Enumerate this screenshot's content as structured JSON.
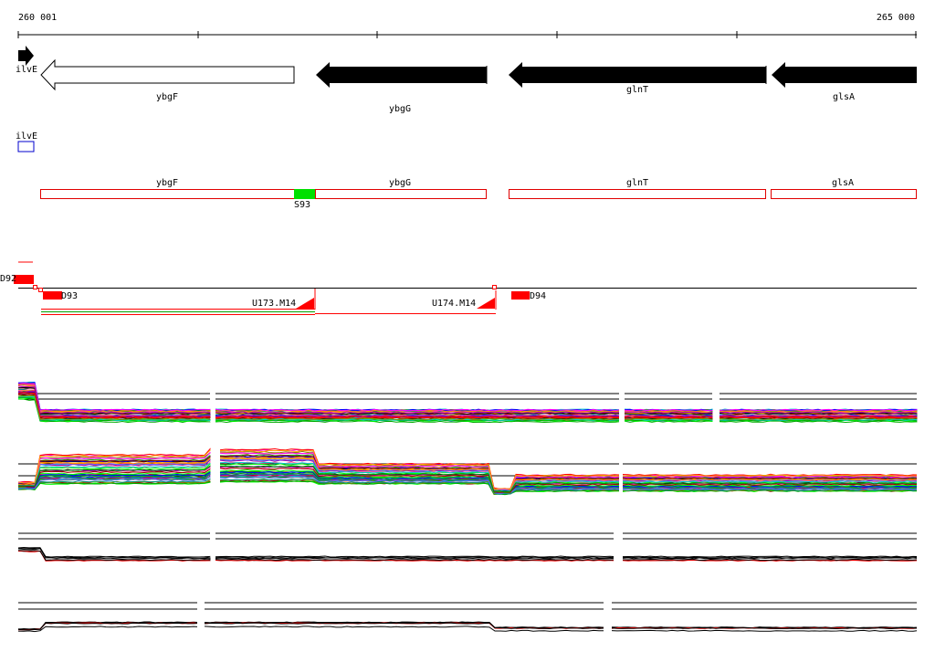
{
  "ruler": {
    "start_label": "260 001",
    "end_label": "265 000"
  },
  "genes": [
    {
      "name": "ilvE",
      "strand": "+",
      "filled": true
    },
    {
      "name": "ybgF",
      "strand": "-",
      "filled": false
    },
    {
      "name": "ybgG",
      "strand": "-",
      "filled": true
    },
    {
      "name": "glnT",
      "strand": "-",
      "filled": true
    },
    {
      "name": "glsA",
      "strand": "-",
      "filled": true
    }
  ],
  "feature_track": {
    "small_box_label": "ilvE",
    "boxes": [
      "ybgF",
      "ybgG",
      "glnT",
      "glsA"
    ],
    "highlight_label": "S93",
    "box_color": "#e00000",
    "highlight_color": "#00e000"
  },
  "segments": {
    "labels": [
      "D92",
      "D93",
      "U173.M14",
      "U174.M14",
      "D94"
    ],
    "color": "#ff0000"
  },
  "colors": {
    "accent": "#ff0000",
    "highlight": "#00e000",
    "gene_box": "#0000cc"
  }
}
